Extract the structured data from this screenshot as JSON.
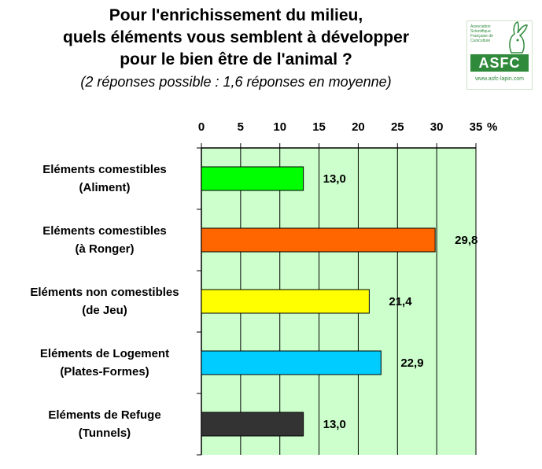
{
  "title": {
    "line1": "Pour l'enrichissement du milieu,",
    "line2": "quels éléments vous semblent à développer",
    "line3": "pour le bien être de l'animal ?",
    "subtitle": "(2 réponses possible : 1,6 réponses en moyenne)"
  },
  "logo": {
    "name": "ASFC",
    "url": "www.asfc-lapin.com",
    "small_text": "Association Scientifique Française de Cuniculture"
  },
  "chart_data": {
    "type": "bar",
    "orientation": "horizontal",
    "categories": [
      [
        "Eléments comestibles",
        "(Aliment)"
      ],
      [
        "Eléments comestibles",
        "(à Ronger)"
      ],
      [
        "Eléments non comestibles",
        "(de Jeu)"
      ],
      [
        "Eléments de Logement",
        "(Plates-Formes)"
      ],
      [
        "Eléments de Refuge",
        "(Tunnels)"
      ]
    ],
    "values": [
      13.0,
      29.8,
      21.4,
      22.9,
      13.0
    ],
    "value_labels": [
      "13,0",
      "29,8",
      "21,4",
      "22,9",
      "13,0"
    ],
    "colors": [
      "#00ff00",
      "#ff6600",
      "#ffff00",
      "#00ccff",
      "#333333"
    ],
    "x_ticks": [
      "0",
      "5",
      "10",
      "15",
      "20",
      "25",
      "30",
      "35"
    ],
    "x_unit": "%",
    "xlim": [
      0,
      35
    ],
    "plot_background": "#ccffcc",
    "grid": true,
    "axis_position": "top"
  }
}
